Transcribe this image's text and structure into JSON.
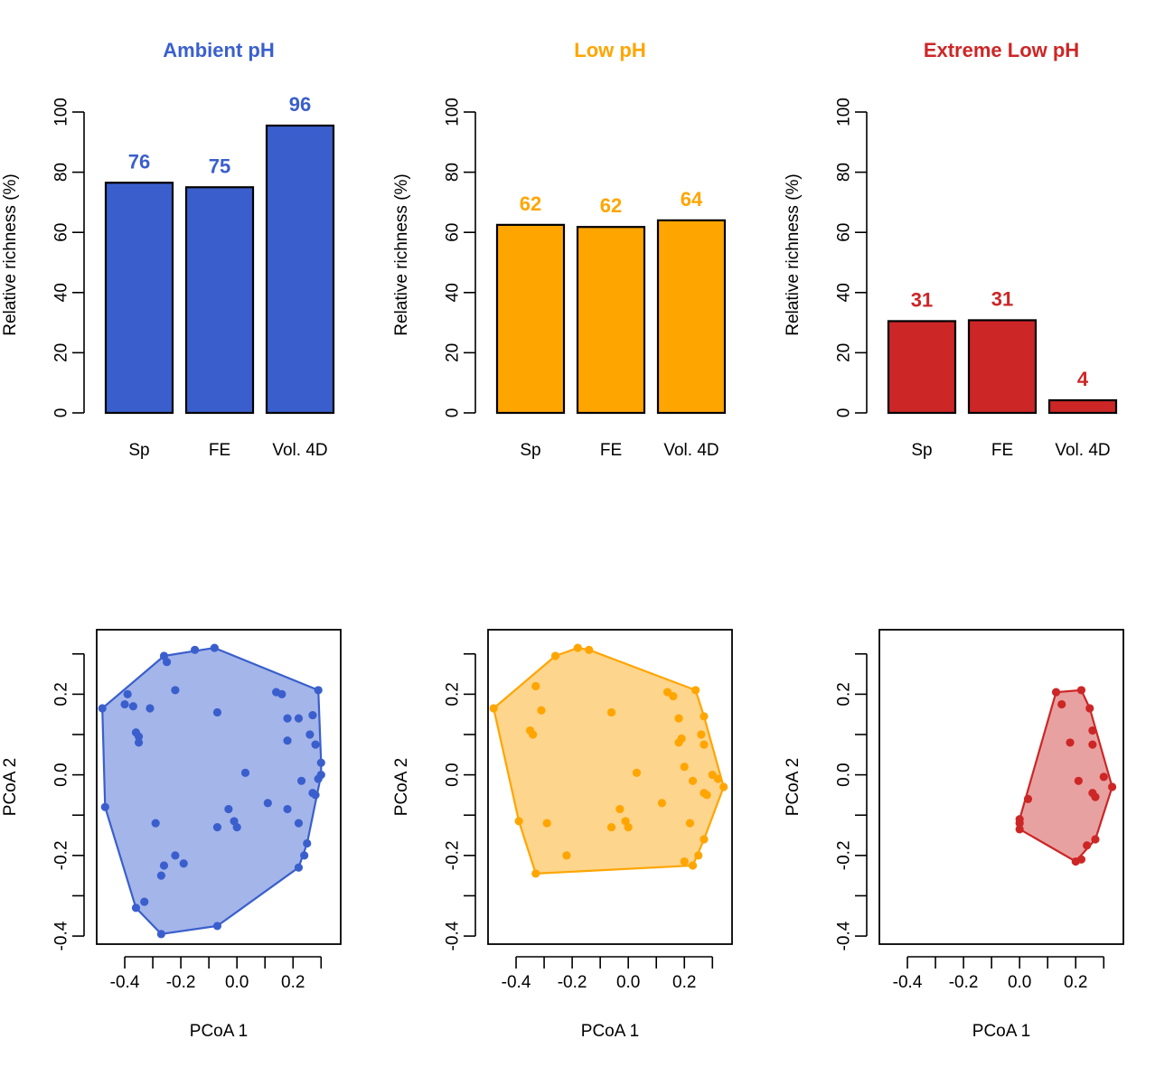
{
  "chart_data": [
    {
      "type": "bar",
      "title": "Ambient pH",
      "color": "#3A5FCD",
      "categories": [
        "Sp",
        "FE",
        "Vol. 4D"
      ],
      "values": [
        76.5,
        75,
        95.5
      ],
      "value_labels": [
        "76",
        "75",
        "96"
      ],
      "ylabel": "Relative richness (%)",
      "ylim": [
        0,
        100
      ],
      "yticks": [
        "0",
        "20",
        "40",
        "60",
        "80",
        "100"
      ]
    },
    {
      "type": "bar",
      "title": "Low pH",
      "color": "#FFA500",
      "categories": [
        "Sp",
        "FE",
        "Vol. 4D"
      ],
      "values": [
        62.5,
        61.8,
        64
      ],
      "value_labels": [
        "62",
        "62",
        "64"
      ],
      "ylabel": "Relative richness (%)",
      "ylim": [
        0,
        100
      ],
      "yticks": [
        "0",
        "20",
        "40",
        "60",
        "80",
        "100"
      ]
    },
    {
      "type": "bar",
      "title": "Extreme Low pH",
      "color": "#CD2626",
      "categories": [
        "Sp",
        "FE",
        "Vol. 4D"
      ],
      "values": [
        30.5,
        30.8,
        4.2
      ],
      "value_labels": [
        "31",
        "31",
        "4"
      ],
      "ylabel": "Relative richness (%)",
      "ylim": [
        0,
        100
      ],
      "yticks": [
        "0",
        "20",
        "40",
        "60",
        "80",
        "100"
      ]
    },
    {
      "type": "scatter",
      "color": "#3A5FCD",
      "fill": "#A4B5E9",
      "xlabel": "PCoA 1",
      "ylabel": "PCoA 2",
      "xlim": [
        -0.5,
        0.37
      ],
      "ylim": [
        -0.42,
        0.36
      ],
      "xticks": [
        -0.4,
        -0.2,
        0.0,
        0.2
      ],
      "xtick_labels": [
        "-0.4",
        "-0.2",
        "0.0",
        "0.2"
      ],
      "yticks": [
        -0.4,
        -0.2,
        0.0,
        0.2
      ],
      "ytick_labels": [
        "-0.4",
        "-0.2",
        "0.0",
        "0.2"
      ],
      "points": [
        [
          -0.48,
          0.165
        ],
        [
          -0.47,
          -0.08
        ],
        [
          -0.39,
          0.2
        ],
        [
          -0.4,
          0.175
        ],
        [
          -0.37,
          0.17
        ],
        [
          -0.36,
          0.105
        ],
        [
          -0.35,
          0.095
        ],
        [
          -0.35,
          0.08
        ],
        [
          -0.31,
          0.165
        ],
        [
          -0.26,
          0.295
        ],
        [
          -0.25,
          0.28
        ],
        [
          -0.22,
          0.21
        ],
        [
          -0.15,
          0.31
        ],
        [
          -0.08,
          0.315
        ],
        [
          -0.07,
          0.155
        ],
        [
          -0.29,
          -0.12
        ],
        [
          -0.22,
          -0.2
        ],
        [
          -0.26,
          -0.225
        ],
        [
          -0.19,
          -0.22
        ],
        [
          -0.27,
          -0.25
        ],
        [
          -0.33,
          -0.315
        ],
        [
          -0.36,
          -0.33
        ],
        [
          -0.27,
          -0.395
        ],
        [
          -0.07,
          -0.375
        ],
        [
          -0.07,
          -0.13
        ],
        [
          -0.03,
          -0.085
        ],
        [
          -0.01,
          -0.115
        ],
        [
          0.0,
          -0.13
        ],
        [
          0.03,
          0.005
        ],
        [
          0.11,
          -0.07
        ],
        [
          0.14,
          0.205
        ],
        [
          0.16,
          0.2
        ],
        [
          0.18,
          0.14
        ],
        [
          0.18,
          -0.085
        ],
        [
          0.18,
          0.085
        ],
        [
          0.22,
          0.14
        ],
        [
          0.22,
          -0.12
        ],
        [
          0.23,
          -0.015
        ],
        [
          0.27,
          0.148
        ],
        [
          0.26,
          0.1
        ],
        [
          0.28,
          0.075
        ],
        [
          0.27,
          -0.045
        ],
        [
          0.28,
          -0.05
        ],
        [
          0.29,
          -0.01
        ],
        [
          0.3,
          0.0
        ],
        [
          0.3,
          0.03
        ],
        [
          0.29,
          0.21
        ],
        [
          0.25,
          -0.17
        ],
        [
          0.24,
          -0.2
        ],
        [
          0.22,
          -0.23
        ]
      ],
      "hull": [
        [
          -0.48,
          0.165
        ],
        [
          -0.26,
          0.295
        ],
        [
          -0.08,
          0.315
        ],
        [
          0.29,
          0.21
        ],
        [
          0.3,
          0.03
        ],
        [
          0.3,
          0.0
        ],
        [
          0.25,
          -0.17
        ],
        [
          0.22,
          -0.23
        ],
        [
          -0.07,
          -0.375
        ],
        [
          -0.27,
          -0.395
        ],
        [
          -0.36,
          -0.33
        ],
        [
          -0.47,
          -0.08
        ]
      ]
    },
    {
      "type": "scatter",
      "color": "#FFA500",
      "fill": "#FDD58C",
      "xlabel": "PCoA 1",
      "ylabel": "PCoA 2",
      "xlim": [
        -0.5,
        0.37
      ],
      "ylim": [
        -0.42,
        0.36
      ],
      "xticks": [
        -0.4,
        -0.2,
        0.0,
        0.2
      ],
      "xtick_labels": [
        "-0.4",
        "-0.2",
        "0.0",
        "0.2"
      ],
      "yticks": [
        -0.4,
        -0.2,
        0.0,
        0.2
      ],
      "ytick_labels": [
        "-0.4",
        "-0.2",
        "0.0",
        "0.2"
      ],
      "points": [
        [
          -0.48,
          0.165
        ],
        [
          -0.33,
          0.22
        ],
        [
          -0.31,
          0.16
        ],
        [
          -0.35,
          0.11
        ],
        [
          -0.34,
          0.1
        ],
        [
          -0.26,
          0.295
        ],
        [
          -0.18,
          0.315
        ],
        [
          -0.14,
          0.31
        ],
        [
          -0.06,
          0.155
        ],
        [
          -0.39,
          -0.115
        ],
        [
          -0.29,
          -0.12
        ],
        [
          -0.22,
          -0.2
        ],
        [
          -0.33,
          -0.245
        ],
        [
          -0.06,
          -0.13
        ],
        [
          -0.03,
          -0.085
        ],
        [
          -0.01,
          -0.115
        ],
        [
          0.0,
          -0.13
        ],
        [
          0.03,
          0.005
        ],
        [
          0.12,
          -0.07
        ],
        [
          0.14,
          0.205
        ],
        [
          0.16,
          0.195
        ],
        [
          0.18,
          0.14
        ],
        [
          0.18,
          0.08
        ],
        [
          0.19,
          0.09
        ],
        [
          0.2,
          0.02
        ],
        [
          0.22,
          -0.12
        ],
        [
          0.23,
          -0.015
        ],
        [
          0.24,
          0.21
        ],
        [
          0.27,
          0.145
        ],
        [
          0.26,
          0.1
        ],
        [
          0.27,
          0.075
        ],
        [
          0.27,
          -0.045
        ],
        [
          0.28,
          -0.05
        ],
        [
          0.3,
          0.0
        ],
        [
          0.32,
          -0.01
        ],
        [
          0.34,
          -0.03
        ],
        [
          0.27,
          -0.16
        ],
        [
          0.25,
          -0.2
        ],
        [
          0.23,
          -0.225
        ],
        [
          0.2,
          -0.215
        ]
      ],
      "hull": [
        [
          -0.48,
          0.165
        ],
        [
          -0.26,
          0.295
        ],
        [
          -0.18,
          0.315
        ],
        [
          -0.14,
          0.31
        ],
        [
          0.24,
          0.21
        ],
        [
          0.27,
          0.145
        ],
        [
          0.34,
          -0.03
        ],
        [
          0.27,
          -0.16
        ],
        [
          0.23,
          -0.225
        ],
        [
          -0.33,
          -0.245
        ],
        [
          -0.39,
          -0.115
        ]
      ]
    },
    {
      "type": "scatter",
      "color": "#CD2626",
      "fill": "#E8A1A1",
      "xlabel": "PCoA 1",
      "ylabel": "PCoA 2",
      "xlim": [
        -0.5,
        0.37
      ],
      "ylim": [
        -0.42,
        0.36
      ],
      "xticks": [
        -0.4,
        -0.2,
        0.0,
        0.2
      ],
      "xtick_labels": [
        "-0.4",
        "-0.2",
        "0.0",
        "0.2"
      ],
      "yticks": [
        -0.4,
        -0.2,
        0.0,
        0.2
      ],
      "ytick_labels": [
        "-0.4",
        "-0.2",
        "0.0",
        "0.2"
      ],
      "points": [
        [
          0.0,
          -0.11
        ],
        [
          0.0,
          -0.12
        ],
        [
          0.0,
          -0.135
        ],
        [
          0.03,
          -0.06
        ],
        [
          0.13,
          0.205
        ],
        [
          0.15,
          0.175
        ],
        [
          0.18,
          0.08
        ],
        [
          0.2,
          -0.215
        ],
        [
          0.21,
          -0.015
        ],
        [
          0.22,
          -0.21
        ],
        [
          0.22,
          0.21
        ],
        [
          0.24,
          -0.175
        ],
        [
          0.25,
          0.165
        ],
        [
          0.26,
          0.11
        ],
        [
          0.26,
          0.075
        ],
        [
          0.26,
          -0.045
        ],
        [
          0.27,
          -0.16
        ],
        [
          0.27,
          -0.055
        ],
        [
          0.3,
          -0.005
        ],
        [
          0.33,
          -0.03
        ]
      ],
      "hull": [
        [
          0.0,
          -0.11
        ],
        [
          0.13,
          0.205
        ],
        [
          0.22,
          0.21
        ],
        [
          0.25,
          0.165
        ],
        [
          0.33,
          -0.03
        ],
        [
          0.27,
          -0.16
        ],
        [
          0.2,
          -0.215
        ],
        [
          0.0,
          -0.135
        ]
      ]
    }
  ]
}
